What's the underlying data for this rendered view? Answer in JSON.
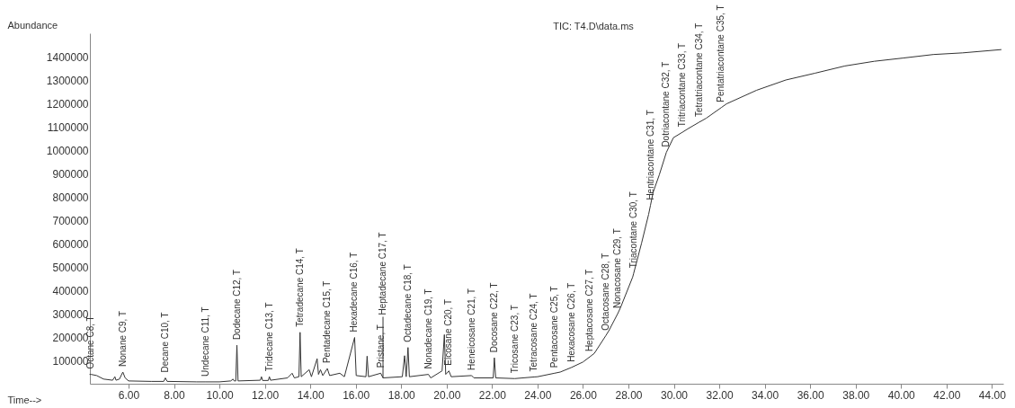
{
  "chart_data": {
    "type": "line",
    "title": "TIC: T4.D\\data.ms",
    "xlabel": "Time-->",
    "ylabel": "Abundance",
    "xlim": [
      4.3,
      44.5
    ],
    "ylim": [
      0,
      1500000
    ],
    "xticks": [
      {
        "value": 6,
        "label": "6.00"
      },
      {
        "value": 8,
        "label": "8.00"
      },
      {
        "value": 10,
        "label": "10.00"
      },
      {
        "value": 12,
        "label": "12.00"
      },
      {
        "value": 14,
        "label": "14.00"
      },
      {
        "value": 16,
        "label": "16.00"
      },
      {
        "value": 18,
        "label": "18.00"
      },
      {
        "value": 20,
        "label": "20.00"
      },
      {
        "value": 22,
        "label": "22.00"
      },
      {
        "value": 24,
        "label": "24.00"
      },
      {
        "value": 26,
        "label": "26.00"
      },
      {
        "value": 28,
        "label": "28.00"
      },
      {
        "value": 30,
        "label": "30.00"
      },
      {
        "value": 32,
        "label": "32.00"
      },
      {
        "value": 34,
        "label": "34.00"
      },
      {
        "value": 36,
        "label": "36.00"
      },
      {
        "value": 38,
        "label": "38.00"
      },
      {
        "value": 40,
        "label": "40.00"
      },
      {
        "value": 42,
        "label": "42.00"
      },
      {
        "value": 44,
        "label": "44.00"
      }
    ],
    "yticks": [
      100000,
      200000,
      300000,
      400000,
      500000,
      600000,
      700000,
      800000,
      900000,
      1000000,
      1100000,
      1200000,
      1300000,
      1400000
    ],
    "grid": false,
    "marker": "none",
    "line_style": "solid",
    "series": [
      {
        "color": "#333333",
        "x": [
          4.3,
          4.35,
          4.6,
          4.9,
          5.3,
          5.4,
          5.45,
          5.6,
          5.75,
          5.85,
          6.0,
          7.0,
          7.55,
          7.62,
          7.7,
          9.0,
          9.4,
          10.0,
          10.5,
          10.6,
          10.65,
          10.72,
          10.77,
          10.82,
          11.8,
          11.85,
          11.9,
          12.15,
          12.2,
          12.25,
          13.0,
          13.2,
          13.3,
          13.5,
          13.55,
          13.6,
          13.95,
          14.05,
          14.3,
          14.36,
          14.45,
          14.55,
          14.75,
          14.85,
          15.3,
          15.5,
          15.95,
          16.02,
          16.45,
          16.5,
          16.56,
          17.1,
          17.2,
          18.05,
          18.15,
          18.22,
          18.3,
          18.36,
          19.2,
          19.3,
          19.8,
          19.9,
          19.96,
          20.1,
          20.2,
          21.1,
          21.2,
          22.05,
          22.1,
          22.16,
          23.0,
          23.85,
          24.0,
          24.75,
          25.0,
          25.5,
          26.0,
          26.3,
          26.5,
          27.0,
          27.14,
          27.53,
          27.65,
          28.19,
          28.23,
          28.58,
          28.89,
          28.97,
          29.09,
          29.36,
          29.67,
          29.98,
          30.37,
          30.65,
          31.11,
          31.42,
          32.09,
          32.32,
          33.64,
          34.93,
          36.21,
          37.53,
          38.82,
          40.1,
          41.42,
          42.71,
          44.4
        ],
        "values": [
          40000,
          40000,
          35000,
          20000,
          15000,
          30000,
          15000,
          20000,
          50000,
          25000,
          12000,
          10000,
          10000,
          25000,
          10000,
          8000,
          8000,
          8000,
          12000,
          20000,
          12000,
          12000,
          165000,
          12000,
          15000,
          30000,
          14000,
          14000,
          30000,
          15000,
          25000,
          45000,
          25000,
          30000,
          220000,
          30000,
          60000,
          30000,
          107000,
          40000,
          60000,
          35000,
          65000,
          35000,
          45000,
          30000,
          198000,
          35000,
          30000,
          118000,
          30000,
          45000,
          25000,
          30000,
          120000,
          30000,
          155000,
          30000,
          40000,
          25000,
          55000,
          210000,
          40000,
          55000,
          30000,
          35000,
          25000,
          25000,
          111000,
          25000,
          22000,
          29000,
          30000,
          45000,
          50000,
          70000,
          93000,
          115000,
          130000,
          205000,
          227000,
          300000,
          325000,
          457000,
          472000,
          602000,
          725000,
          763000,
          820000,
          894000,
          990000,
          1053000,
          1076000,
          1093000,
          1119000,
          1136000,
          1182000,
          1198000,
          1256000,
          1300000,
          1329000,
          1360000,
          1380000,
          1394000,
          1409000,
          1416000,
          1430000
        ]
      }
    ],
    "annotations": [
      {
        "text": "Octane C8, T",
        "x": 4.35,
        "y": 40000
      },
      {
        "text": "Nonane C9, T",
        "x": 5.75,
        "y": 50000
      },
      {
        "text": "Decane C10, T",
        "x": 7.62,
        "y": 25000
      },
      {
        "text": "Undecane C11, T",
        "x": 9.4,
        "y": 8000
      },
      {
        "text": "Dodecane C12, T",
        "x": 10.77,
        "y": 165000
      },
      {
        "text": "Tridecane C13, T",
        "x": 12.2,
        "y": 30000
      },
      {
        "text": "Tetradecane C14, T",
        "x": 13.55,
        "y": 220000
      },
      {
        "text": "Pentadecane C15, T",
        "x": 14.75,
        "y": 65000
      },
      {
        "text": "Hexadecane C16, T",
        "x": 15.95,
        "y": 198000
      },
      {
        "text": "Pristane, T",
        "x": 17.1,
        "y": 45000
      },
      {
        "text": "Heptadecane C17, T",
        "x": 17.2,
        "y": 25000
      },
      {
        "text": "Octadecane C18, T",
        "x": 18.3,
        "y": 155000
      },
      {
        "text": "Nonadecane C19, T",
        "x": 19.2,
        "y": 40000
      },
      {
        "text": "Eicosane C20, T",
        "x": 20.1,
        "y": 55000
      },
      {
        "text": "Heneicosane C21, T",
        "x": 21.1,
        "y": 35000
      },
      {
        "text": "Docosane C22, T",
        "x": 22.1,
        "y": 111000
      },
      {
        "text": "Tricosane C23, T",
        "x": 23.0,
        "y": 22000
      },
      {
        "text": "Tetracosane C24, T",
        "x": 23.85,
        "y": 29000
      },
      {
        "text": "Pentacosane C25, T",
        "x": 24.75,
        "y": 45000
      },
      {
        "text": "Hexacosane C26, T",
        "x": 25.5,
        "y": 70000
      },
      {
        "text": "Heptacosane C27, T",
        "x": 26.3,
        "y": 115000
      },
      {
        "text": "Octacosane C28, T",
        "x": 27.0,
        "y": 205000
      },
      {
        "text": "Nonacosane C29, T",
        "x": 27.53,
        "y": 300000
      },
      {
        "text": "Triacontane C30, T",
        "x": 28.23,
        "y": 472000
      },
      {
        "text": "Hentriacontane C31, T",
        "x": 28.97,
        "y": 763000
      },
      {
        "text": "Dotriacontane C32, T",
        "x": 29.67,
        "y": 990000
      },
      {
        "text": "Tritriacontane C33, T",
        "x": 30.37,
        "y": 1076000
      },
      {
        "text": "Tetratriacontane C34, T",
        "x": 31.11,
        "y": 1119000
      },
      {
        "text": "Pentatriacontane C35, T",
        "x": 32.09,
        "y": 1182000
      }
    ]
  }
}
